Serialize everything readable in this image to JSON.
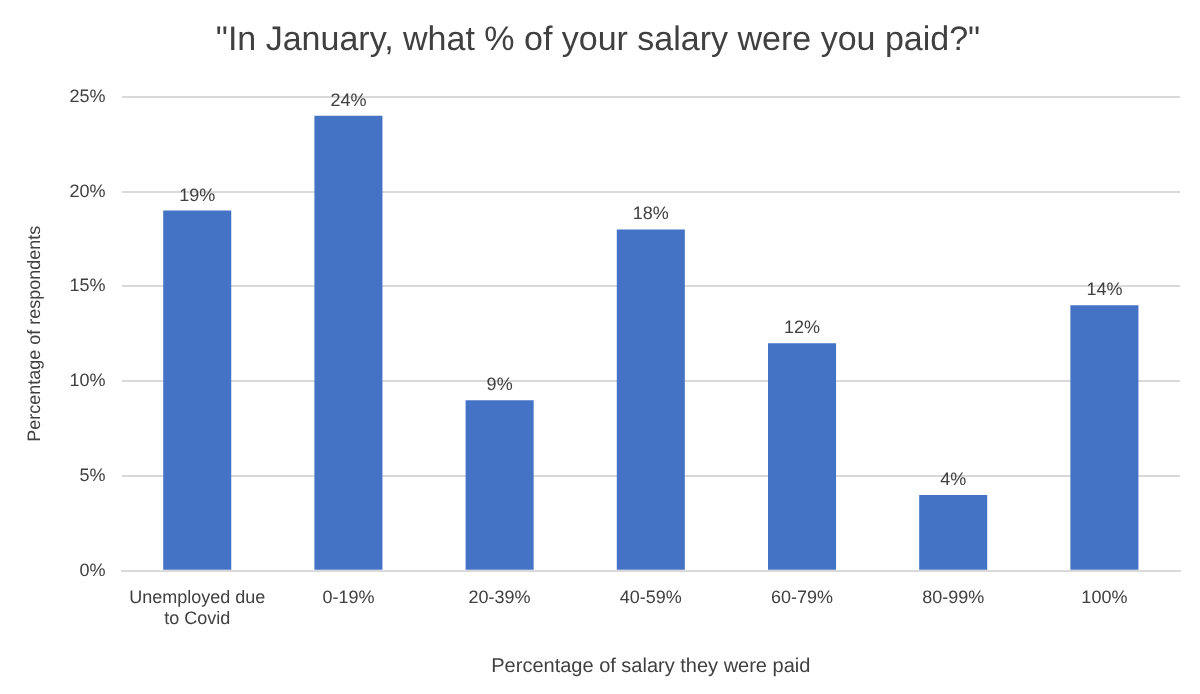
{
  "chart_data": {
    "type": "bar",
    "title": "\"In January, what % of your salary were you paid?\"",
    "xlabel": "Percentage of salary they were paid",
    "ylabel": "Percentage of respondents",
    "categories": [
      "Unemployed due to Covid",
      "0-19%",
      "20-39%",
      "40-59%",
      "60-79%",
      "80-99%",
      "100%"
    ],
    "values": [
      19,
      24,
      9,
      18,
      12,
      4,
      14
    ],
    "value_labels": [
      "19%",
      "24%",
      "9%",
      "18%",
      "12%",
      "4%",
      "14%"
    ],
    "color": "#4472c4",
    "ylim": [
      0,
      25
    ],
    "yticks": [
      {
        "value": 0,
        "label": "0%"
      },
      {
        "value": 5,
        "label": "5%"
      },
      {
        "value": 10,
        "label": "10%"
      },
      {
        "value": 15,
        "label": "15%"
      },
      {
        "value": 20,
        "label": "20%"
      },
      {
        "value": 25,
        "label": "25%"
      }
    ],
    "grid": "y"
  }
}
